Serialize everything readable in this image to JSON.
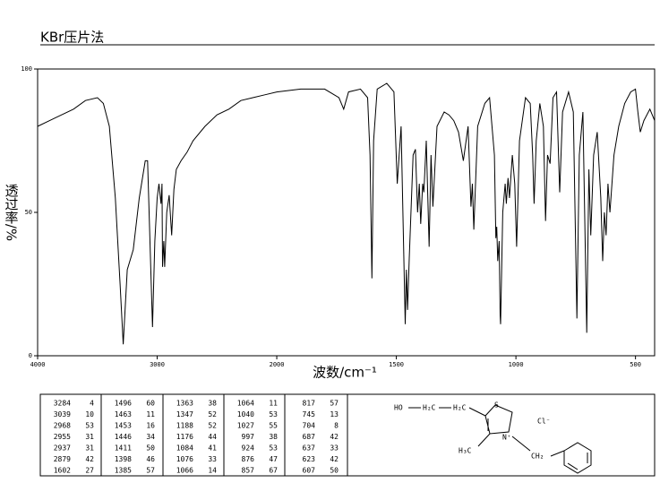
{
  "chart_data": {
    "type": "line",
    "title": "KBr压片法",
    "xlabel": "波数/cm⁻¹",
    "ylabel": "透过率/%",
    "xlim": [
      4000,
      420
    ],
    "ylim": [
      0,
      100
    ],
    "xticks": [
      4000,
      3000,
      2000,
      1500,
      1000,
      500
    ],
    "yticks": [
      0,
      50,
      100
    ],
    "xscale": {
      "break": 2000,
      "ratio": 2
    },
    "grid": false,
    "color": "#000000",
    "x": [
      4000,
      3900,
      3800,
      3700,
      3600,
      3500,
      3450,
      3400,
      3350,
      3310,
      3284,
      3250,
      3200,
      3150,
      3100,
      3080,
      3039,
      3020,
      3000,
      2985,
      2968,
      2960,
      2955,
      2945,
      2937,
      2920,
      2900,
      2879,
      2860,
      2840,
      2800,
      2750,
      2700,
      2600,
      2500,
      2400,
      2300,
      2200,
      2100,
      2000,
      1900,
      1800,
      1740,
      1720,
      1700,
      1650,
      1620,
      1610,
      1602,
      1595,
      1580,
      1540,
      1510,
      1496,
      1480,
      1463,
      1458,
      1453,
      1446,
      1430,
      1420,
      1411,
      1404,
      1398,
      1390,
      1385,
      1375,
      1363,
      1355,
      1347,
      1330,
      1300,
      1280,
      1260,
      1240,
      1220,
      1200,
      1188,
      1182,
      1176,
      1160,
      1130,
      1110,
      1090,
      1084,
      1080,
      1076,
      1070,
      1066,
      1064,
      1055,
      1045,
      1040,
      1033,
      1027,
      1015,
      1005,
      997,
      985,
      960,
      940,
      930,
      924,
      915,
      900,
      885,
      876,
      868,
      857,
      845,
      830,
      817,
      805,
      780,
      760,
      745,
      735,
      720,
      704,
      695,
      687,
      675,
      660,
      645,
      637,
      630,
      623,
      615,
      607,
      590,
      570,
      545,
      520,
      500,
      490,
      480,
      465,
      440,
      420
    ],
    "values": [
      80,
      82,
      84,
      86,
      89,
      90,
      88,
      80,
      55,
      25,
      4,
      30,
      37,
      55,
      68,
      68,
      10,
      40,
      55,
      60,
      53,
      60,
      31,
      40,
      31,
      50,
      56,
      42,
      58,
      65,
      68,
      71,
      75,
      80,
      84,
      86,
      89,
      90,
      91,
      92,
      93,
      93,
      90,
      86,
      92,
      93,
      90,
      70,
      27,
      75,
      93,
      95,
      92,
      60,
      80,
      11,
      30,
      16,
      34,
      70,
      72,
      50,
      60,
      46,
      60,
      57,
      75,
      38,
      70,
      52,
      80,
      85,
      84,
      82,
      78,
      68,
      80,
      52,
      60,
      44,
      80,
      88,
      90,
      70,
      41,
      45,
      33,
      40,
      14,
      11,
      50,
      60,
      53,
      62,
      55,
      70,
      60,
      38,
      75,
      90,
      88,
      70,
      53,
      75,
      88,
      80,
      47,
      70,
      67,
      90,
      92,
      57,
      85,
      92,
      85,
      13,
      70,
      85,
      8,
      65,
      42,
      70,
      78,
      55,
      33,
      50,
      42,
      60,
      50,
      70,
      80,
      88,
      92,
      93,
      85,
      78,
      82,
      86,
      82
    ]
  },
  "peak_table": {
    "rows": [
      [
        "3284",
        "4",
        "1496",
        "60",
        "1363",
        "38",
        "1064",
        "11",
        "817",
        "57"
      ],
      [
        "3039",
        "10",
        "1463",
        "11",
        "1347",
        "52",
        "1040",
        "53",
        "745",
        "13"
      ],
      [
        "2968",
        "53",
        "1453",
        "16",
        "1188",
        "52",
        "1027",
        "55",
        "704",
        "8"
      ],
      [
        "2955",
        "31",
        "1446",
        "34",
        "1176",
        "44",
        "997",
        "38",
        "687",
        "42"
      ],
      [
        "2937",
        "31",
        "1411",
        "50",
        "1084",
        "41",
        "924",
        "53",
        "637",
        "33"
      ],
      [
        "2879",
        "42",
        "1398",
        "46",
        "1076",
        "33",
        "876",
        "47",
        "623",
        "42"
      ],
      [
        "1602",
        "27",
        "1385",
        "57",
        "1066",
        "14",
        "857",
        "67",
        "607",
        "50"
      ]
    ]
  },
  "structure": {
    "labels": [
      "HO",
      "H₂C",
      "H₂C",
      "S",
      "N⁺",
      "H₃C",
      "CH₂",
      "Cl⁻"
    ]
  }
}
